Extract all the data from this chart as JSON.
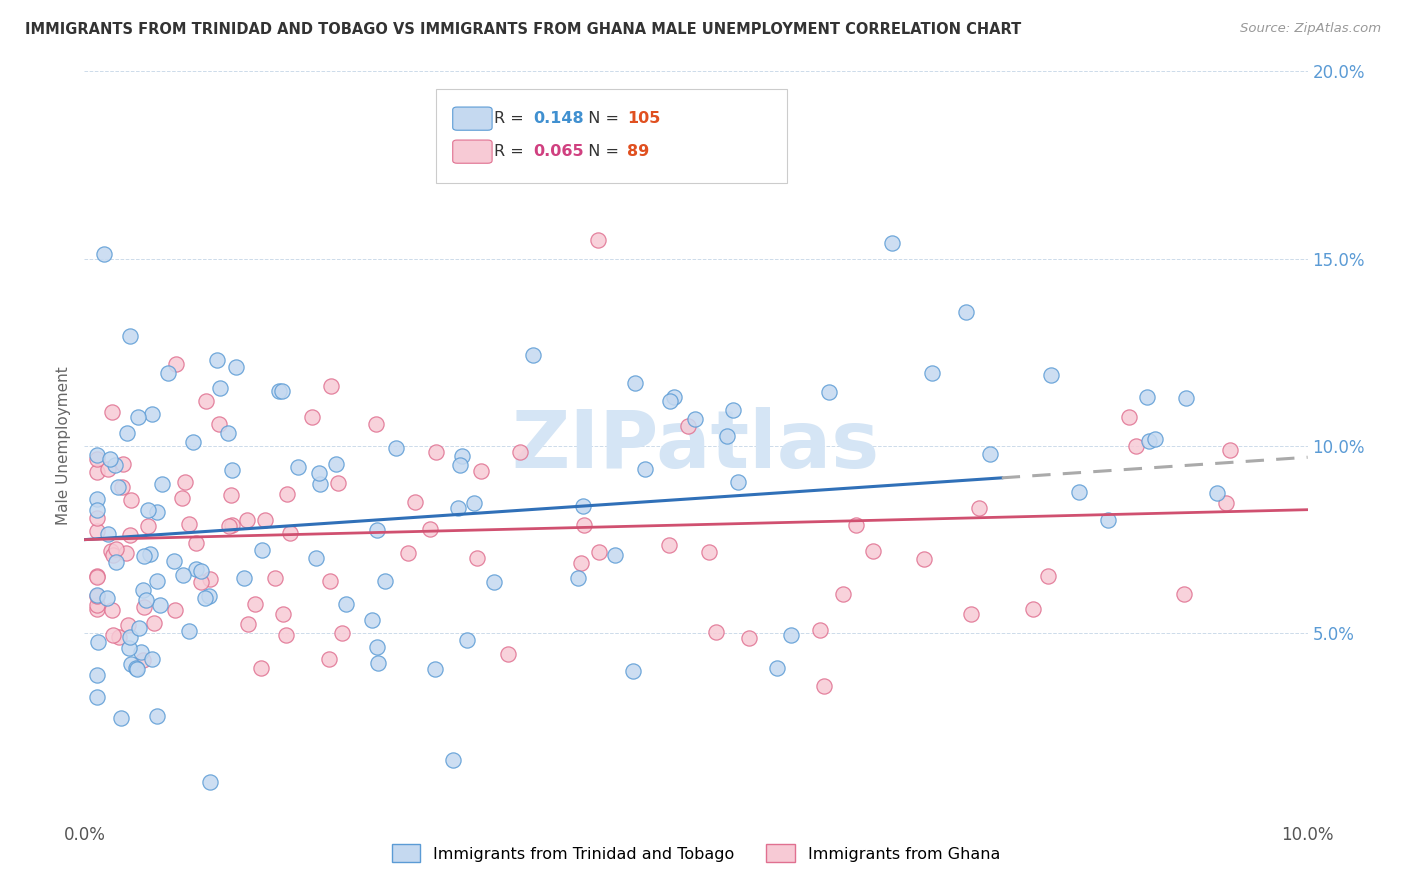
{
  "title": "IMMIGRANTS FROM TRINIDAD AND TOBAGO VS IMMIGRANTS FROM GHANA MALE UNEMPLOYMENT CORRELATION CHART",
  "source": "Source: ZipAtlas.com",
  "ylabel": "Male Unemployment",
  "series1_label": "Immigrants from Trinidad and Tobago",
  "series2_label": "Immigrants from Ghana",
  "series1_fill": "#c5d9f0",
  "series1_edge": "#5b9bd5",
  "series2_fill": "#f7cad5",
  "series2_edge": "#e07090",
  "series1_R": 0.148,
  "series1_N": 105,
  "series2_R": 0.065,
  "series2_N": 89,
  "xlim": [
    0.0,
    0.1
  ],
  "ylim": [
    0.0,
    0.2
  ],
  "ytick_color": "#5b9bd5",
  "title_color": "#333333",
  "watermark": "ZIPatlas",
  "watermark_color": "#d5e5f5",
  "trend1_color": "#3070b8",
  "trend2_color": "#d05070",
  "trend_ext_color": "#aaaaaa",
  "background_color": "#ffffff",
  "legend_R1_color": "#4090d0",
  "legend_N1_color": "#e05020",
  "legend_R2_color": "#d04080",
  "legend_N2_color": "#e05020",
  "trend1_intercept": 0.075,
  "trend1_slope": 0.22,
  "trend2_intercept": 0.075,
  "trend2_slope": 0.08,
  "trend1_dash_start": 0.075
}
